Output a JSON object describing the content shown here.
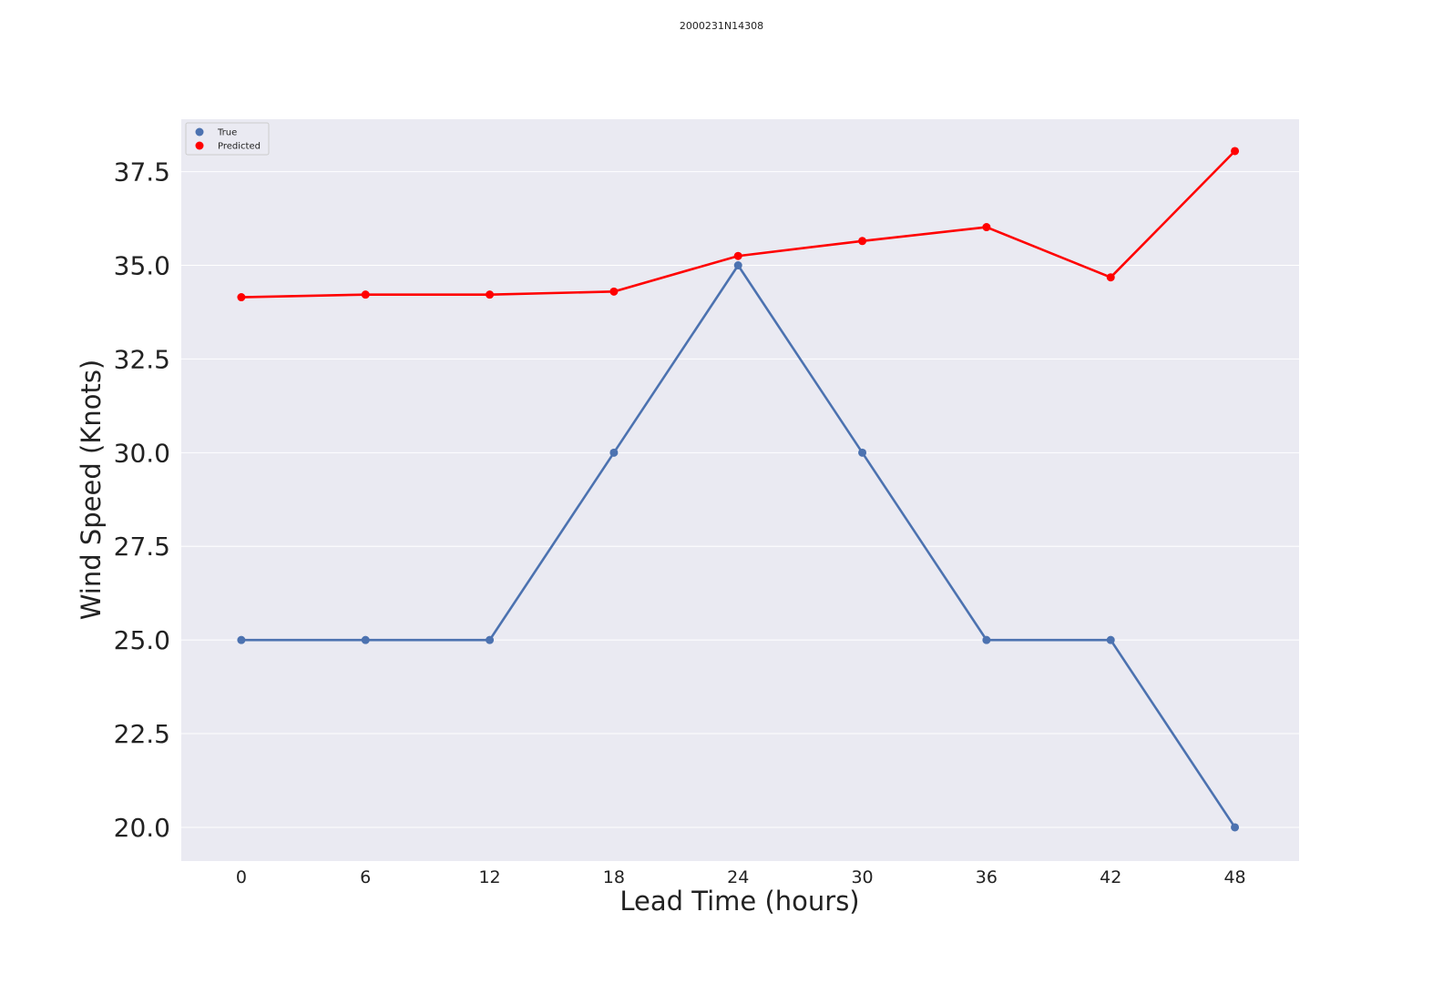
{
  "chart_data": {
    "type": "line",
    "title": "2000231N14308",
    "xlabel": "Lead Time (hours)",
    "ylabel": "Wind Speed (Knots)",
    "x": [
      0,
      6,
      12,
      18,
      24,
      30,
      36,
      42,
      48
    ],
    "x_tick_labels": [
      "0",
      "6",
      "12",
      "18",
      "24",
      "30",
      "36",
      "42",
      "48"
    ],
    "y_tick_values": [
      20.0,
      22.5,
      25.0,
      27.5,
      30.0,
      32.5,
      35.0,
      37.5
    ],
    "y_tick_labels": [
      "20.0",
      "22.5",
      "25.0",
      "27.5",
      "30.0",
      "32.5",
      "35.0",
      "37.5"
    ],
    "xlim": [
      -2.9,
      51.1
    ],
    "ylim": [
      19.1,
      38.9
    ],
    "grid": true,
    "legend_position": "top-left",
    "series": [
      {
        "name": "True",
        "color": "#4c72b0",
        "values": [
          25,
          25,
          25,
          30,
          35,
          30,
          25,
          25,
          20
        ]
      },
      {
        "name": "Predicted",
        "color": "#ff0000",
        "values": [
          34.15,
          34.22,
          34.22,
          34.3,
          35.25,
          35.65,
          36.02,
          34.68,
          38.05
        ]
      }
    ]
  }
}
